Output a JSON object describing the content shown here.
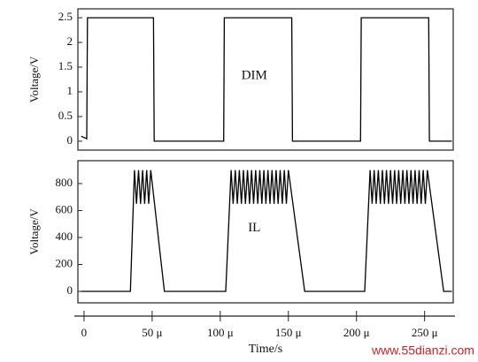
{
  "chart_data": [
    {
      "type": "line",
      "y_label": "Voltage/V",
      "annotation": "DIM",
      "color": "#000000",
      "xlim": [
        -4.5e-06,
        0.000271
      ],
      "ylim": [
        -0.18,
        2.68
      ],
      "yticks": [
        0,
        0.5,
        1,
        1.5,
        2,
        2.5
      ],
      "x": [
        -2e-06,
        2e-06,
        2.5e-06,
        5.1e-05,
        5.15e-05,
        0.0001025,
        0.000103,
        0.0001525,
        0.000153,
        0.000203,
        0.0002035,
        0.000253,
        0.0002535,
        0.00027
      ],
      "values": [
        0.1,
        0.05,
        2.5,
        2.5,
        0,
        0,
        2.5,
        2.5,
        0,
        0,
        2.5,
        2.5,
        0,
        0
      ]
    },
    {
      "type": "line",
      "y_label": "Voltage/V",
      "x_label": "Time/s",
      "annotation": "IL",
      "color": "#000000",
      "xlim": [
        -4.5e-06,
        0.000271
      ],
      "ylim": [
        -85,
        970
      ],
      "yticks": [
        0,
        200,
        400,
        600,
        800
      ],
      "xticks": [
        0,
        {
          "value": 5e-05,
          "label": "50 μ"
        },
        {
          "value": 0.0001,
          "label": "100 μ"
        },
        {
          "value": 0.00015,
          "label": "150 μ"
        },
        {
          "value": 0.0002,
          "label": "200 μ"
        },
        {
          "value": 0.00025,
          "label": "250 μ"
        }
      ],
      "x": [
        -2e-06,
        3.4e-05,
        3.7e-05,
        3.85e-05,
        4e-05,
        4.15e-05,
        4.3e-05,
        4.45e-05,
        4.6e-05,
        4.75e-05,
        4.9e-05,
        5.9e-05,
        0.000104,
        0.000108,
        0.0001095,
        0.000111,
        0.0001125,
        0.000114,
        0.0001155,
        0.000117,
        0.0001185,
        0.00012,
        0.0001215,
        0.000123,
        0.0001245,
        0.000126,
        0.0001275,
        0.000129,
        0.0001305,
        0.000132,
        0.0001335,
        0.000135,
        0.0001365,
        0.000138,
        0.0001395,
        0.000141,
        0.0001425,
        0.000144,
        0.0001455,
        0.000147,
        0.0001485,
        0.00015,
        0.000162,
        0.000206,
        0.00021,
        0.0002115,
        0.000213,
        0.0002145,
        0.000216,
        0.0002175,
        0.000219,
        0.0002205,
        0.000222,
        0.0002235,
        0.000225,
        0.0002265,
        0.000228,
        0.0002295,
        0.000231,
        0.0002325,
        0.000234,
        0.0002355,
        0.000237,
        0.0002385,
        0.00024,
        0.0002415,
        0.000243,
        0.0002445,
        0.000246,
        0.0002475,
        0.000249,
        0.0002505,
        0.000252,
        0.000264,
        0.00027
      ],
      "values": [
        0,
        0,
        900,
        650,
        900,
        650,
        900,
        650,
        900,
        650,
        900,
        0,
        0,
        900,
        650,
        900,
        650,
        900,
        650,
        900,
        650,
        900,
        650,
        900,
        650,
        900,
        650,
        900,
        650,
        900,
        650,
        900,
        650,
        900,
        650,
        900,
        650,
        900,
        650,
        900,
        650,
        900,
        0,
        0,
        900,
        650,
        900,
        650,
        900,
        650,
        900,
        650,
        900,
        650,
        900,
        650,
        900,
        650,
        900,
        650,
        900,
        650,
        900,
        650,
        900,
        650,
        900,
        650,
        900,
        650,
        900,
        650,
        900,
        0,
        0
      ]
    }
  ],
  "watermark": "www.55dianzi.com"
}
